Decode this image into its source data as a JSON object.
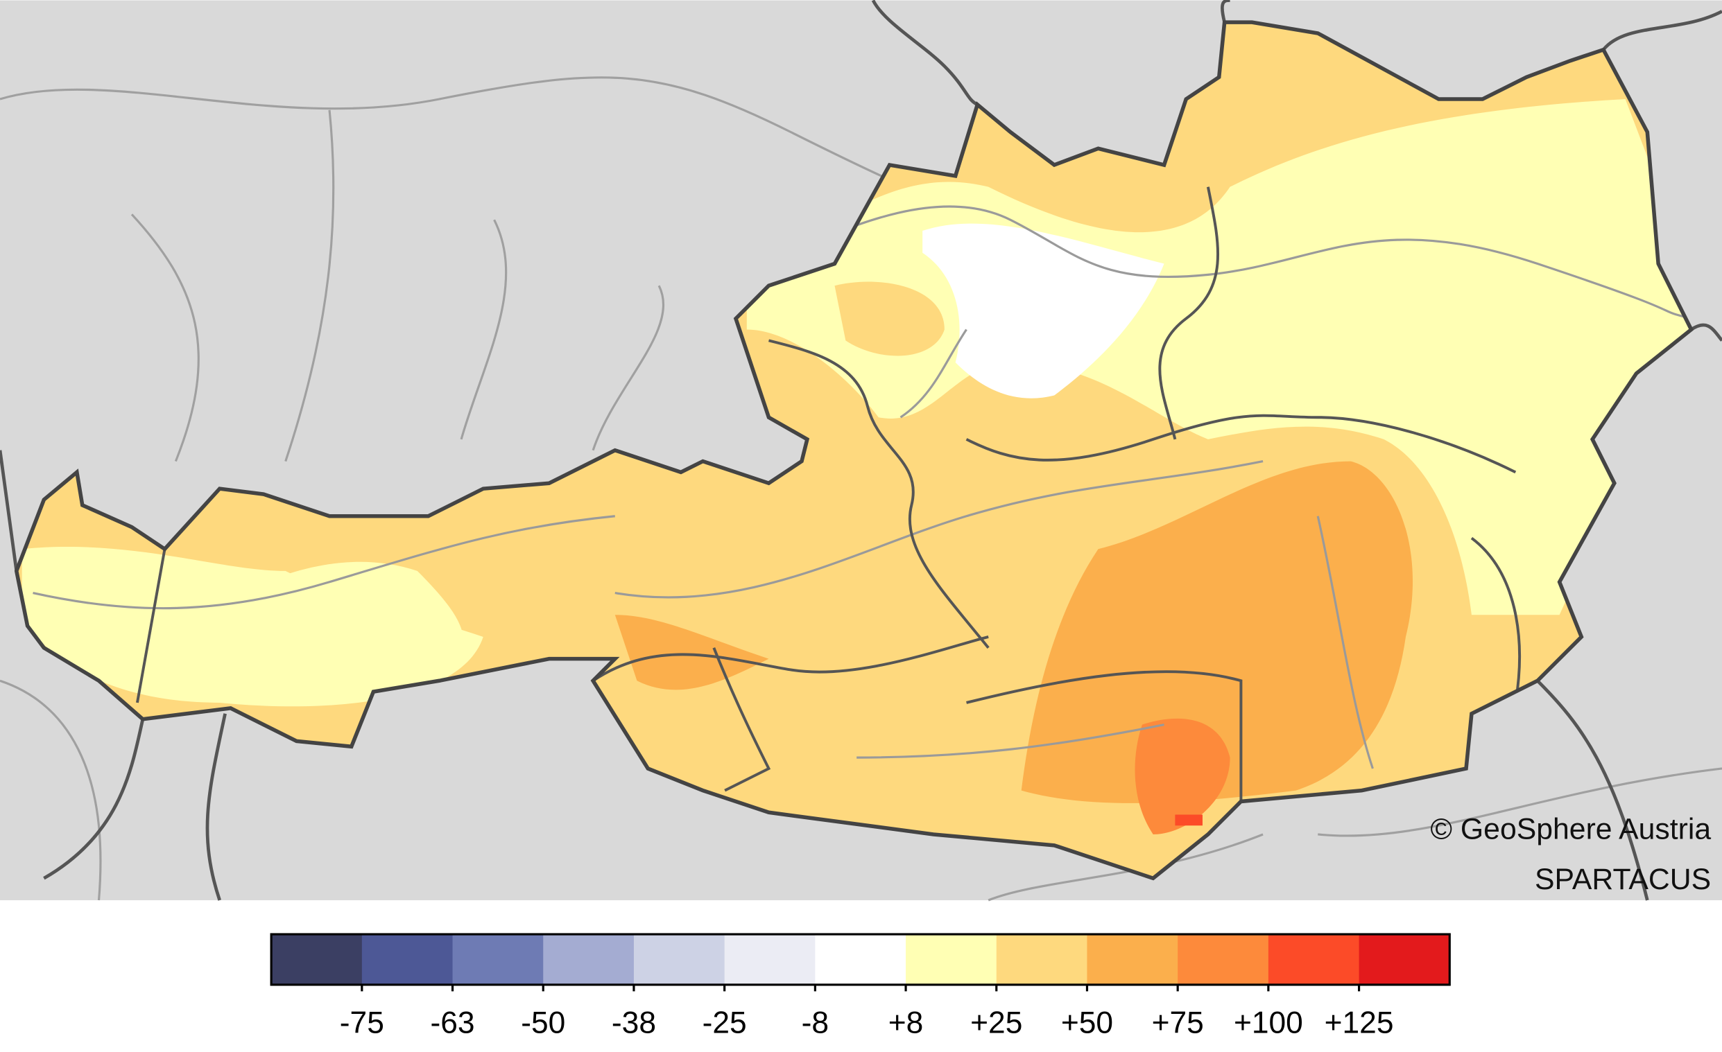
{
  "legend": {
    "colors": [
      "#3b3f63",
      "#4d5896",
      "#6e7bb4",
      "#a4acd2",
      "#cdd2e5",
      "#ebecf4",
      "#ffffff",
      "#ffffb4",
      "#fed97e",
      "#fbaf4c",
      "#fd8a3b",
      "#fc4b28",
      "#e31a1c"
    ],
    "ticks": [
      "-75",
      "-63",
      "-50",
      "-38",
      "-25",
      "-8",
      "+8",
      "+25",
      "+50",
      "+75",
      "+100",
      "+125"
    ]
  },
  "credits": {
    "copyright": "© GeoSphere Austria",
    "dataset": "SPARTACUS"
  }
}
